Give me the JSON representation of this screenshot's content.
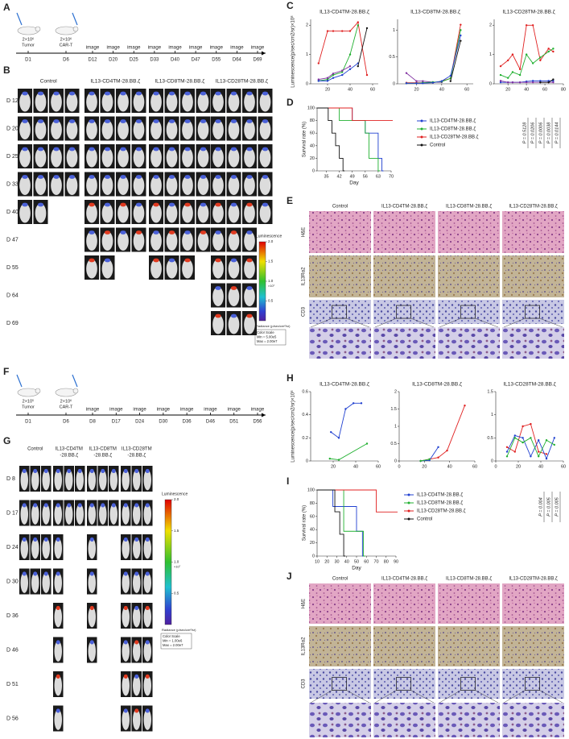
{
  "panel_labels": [
    "A",
    "B",
    "C",
    "D",
    "E",
    "F",
    "G",
    "H",
    "I",
    "J"
  ],
  "timeline_a": {
    "injections": [
      {
        "dose": "2×10⁶",
        "what": "Tumor"
      },
      {
        "dose": "2×10⁶",
        "what": "CAR-T"
      }
    ],
    "days": [
      "D1",
      "D6",
      "D12",
      "D20",
      "D25",
      "D33",
      "D40",
      "D47",
      "D55",
      "D64",
      "D69"
    ],
    "event": "image"
  },
  "panel_b": {
    "groups": [
      "Control",
      "IL13-CD4TM-28.BB.ζ",
      "IL13-CD8TM-28.BB.ζ",
      "IL13-CD28TM-28.BB.ζ"
    ],
    "days": [
      "D 12",
      "D 20",
      "D 25",
      "D 33",
      "D 40",
      "D 47",
      "D 55",
      "D 64",
      "D 69"
    ],
    "counts": [
      [
        4,
        4,
        4,
        4,
        2,
        0,
        0,
        0,
        0
      ],
      [
        4,
        4,
        4,
        4,
        4,
        4,
        2,
        0,
        0
      ],
      [
        4,
        4,
        4,
        4,
        4,
        4,
        3,
        0,
        0
      ],
      [
        4,
        4,
        4,
        4,
        4,
        3,
        3,
        3,
        3
      ]
    ],
    "colorbar": {
      "title": "Luminescence",
      "ticks": [
        {
          "value": 2,
          "label": "2.0"
        },
        {
          "value": 1.5,
          "label": "1.5"
        },
        {
          "value": 1,
          "label": "1.0"
        },
        {
          "value": 0.5,
          "label": "0.5"
        }
      ],
      "lim": [
        0,
        2
      ],
      "multiplier": "×10⁷",
      "unit": "Radiance (p/sec/cm²/sr)",
      "scale_title": "Color Scale",
      "min": "Min = 5.00e5",
      "max": "Max = 2.00e7"
    }
  },
  "panel_c": {
    "ylabel": "Luminescence(p/sec/cm2/sr)×10⁸",
    "charts": [
      {
        "type": "line",
        "title": "IL13-CD4TM-28.BB.ζ",
        "xlim": [
          5,
          65
        ],
        "xticks": [
          20,
          40,
          60
        ],
        "ylim": [
          0,
          2.2
        ],
        "yticks": [
          0,
          1,
          2
        ],
        "series": [
          {
            "color": "#e02020",
            "x": [
              12,
              20,
              25,
              33,
              40,
              47,
              55
            ],
            "values": [
              0.7,
              1.8,
              1.8,
              1.8,
              1.8,
              2.1,
              0.3
            ]
          },
          {
            "color": "#20b030",
            "x": [
              12,
              20,
              25,
              33,
              40,
              47
            ],
            "values": [
              0.1,
              0.15,
              0.3,
              0.4,
              1.0,
              2.0
            ]
          },
          {
            "color": "#2040d0",
            "x": [
              12,
              20,
              25,
              33,
              40,
              47
            ],
            "values": [
              0.1,
              0.1,
              0.2,
              0.3,
              0.5,
              0.7
            ]
          },
          {
            "color": "#8030a0",
            "x": [
              12,
              20,
              25,
              33,
              40
            ],
            "values": [
              0.15,
              0.2,
              0.35,
              0.45,
              0.6
            ]
          },
          {
            "color": "#111111",
            "x": [
              47,
              55
            ],
            "values": [
              0.6,
              1.9
            ]
          }
        ]
      },
      {
        "type": "line",
        "title": "IL13-CD8TM-28.BB.ζ",
        "xlim": [
          5,
          65
        ],
        "xticks": [
          20,
          40,
          60
        ],
        "ylim": [
          0,
          1.2
        ],
        "yticks": [
          0,
          0.5,
          1
        ],
        "series": [
          {
            "color": "#8030a0",
            "x": [
              12,
              20,
              25,
              33,
              40
            ],
            "values": [
              0.2,
              0.05,
              0.05,
              0.03,
              0.03
            ]
          },
          {
            "color": "#e02020",
            "x": [
              12,
              20,
              25,
              33,
              40,
              47,
              55
            ],
            "values": [
              0.02,
              0.02,
              0.02,
              0.02,
              0.05,
              0.1,
              1.1
            ]
          },
          {
            "color": "#20b030",
            "x": [
              12,
              20,
              25,
              33,
              40,
              47,
              55
            ],
            "values": [
              0.01,
              0.01,
              0.02,
              0.03,
              0.04,
              0.1,
              1.0
            ]
          },
          {
            "color": "#2040d0",
            "x": [
              12,
              20,
              25,
              33,
              40,
              47,
              55
            ],
            "values": [
              0.01,
              0.01,
              0.01,
              0.02,
              0.05,
              0.15,
              0.9
            ]
          },
          {
            "color": "#111111",
            "x": [
              47,
              55
            ],
            "values": [
              0.05,
              0.8
            ]
          }
        ]
      },
      {
        "type": "line",
        "title": "IL13-CD28TM-28.BB.ζ",
        "xlim": [
          5,
          80
        ],
        "xticks": [
          20,
          40,
          60,
          80
        ],
        "ylim": [
          0,
          2.2
        ],
        "yticks": [
          0,
          1,
          2
        ],
        "series": [
          {
            "color": "#e02020",
            "x": [
              12,
              20,
              25,
              33,
              40,
              47,
              55,
              64,
              69
            ],
            "values": [
              0.6,
              0.8,
              1.0,
              0.5,
              2.0,
              2.0,
              0.8,
              1.2,
              1.1
            ]
          },
          {
            "color": "#20b030",
            "x": [
              12,
              20,
              25,
              33,
              40,
              47,
              55,
              64,
              69
            ],
            "values": [
              0.3,
              0.2,
              0.4,
              0.3,
              1.0,
              0.7,
              0.9,
              1.1,
              1.2
            ]
          },
          {
            "color": "#2040d0",
            "x": [
              12,
              20,
              25,
              33,
              40,
              47,
              55,
              64,
              69
            ],
            "values": [
              0.05,
              0.05,
              0.05,
              0.05,
              0.08,
              0.1,
              0.1,
              0.1,
              0.1
            ]
          },
          {
            "color": "#8030a0",
            "x": [
              12,
              20,
              25,
              33,
              40,
              47,
              55,
              64,
              69
            ],
            "values": [
              0.1,
              0.05,
              0.05,
              0.05,
              0.05,
              0.05,
              0.05,
              0.05,
              0.05
            ]
          },
          {
            "color": "#111111",
            "x": [
              55,
              64,
              69
            ],
            "values": [
              0.05,
              0.05,
              0.15
            ]
          }
        ]
      }
    ]
  },
  "panel_d": {
    "type": "line",
    "step": true,
    "ylabel": "Survival rate (%)",
    "xlabel": "Day",
    "xlim": [
      30,
      70
    ],
    "xticks": [
      35,
      42,
      49,
      56,
      63,
      70
    ],
    "ylim": [
      0,
      100
    ],
    "yticks": [
      0,
      20,
      40,
      60,
      80,
      100
    ],
    "series": [
      {
        "name": "IL13-CD4TM-28.BB.ζ",
        "color": "#2040d0",
        "x": [
          30,
          49,
          56,
          63,
          65
        ],
        "values": [
          100,
          80,
          60,
          20,
          0
        ]
      },
      {
        "name": "IL13-CD8TM-28.BB.ζ",
        "color": "#20b030",
        "x": [
          30,
          42,
          56,
          58,
          63
        ],
        "values": [
          100,
          80,
          60,
          20,
          0
        ]
      },
      {
        "name": "IL13-CD28TM-28.BB.ζ",
        "color": "#e02020",
        "x": [
          30,
          49,
          70
        ],
        "values": [
          100,
          80,
          80
        ]
      },
      {
        "name": "Control",
        "color": "#111111",
        "x": [
          30,
          36,
          38,
          40,
          42,
          44
        ],
        "values": [
          100,
          80,
          60,
          40,
          20,
          0
        ]
      }
    ],
    "pvalues": [
      "P = 0.5128",
      "P = 0.0206",
      "P = 0.0006",
      "P = 0.0038",
      "P = 0.0144"
    ]
  },
  "panel_e": {
    "columns": [
      "Control",
      "IL13-CD4TM-28.BB.ζ",
      "IL13-CD8TM-28.BB.ζ",
      "IL13-CD28TM-28.BB.ζ"
    ],
    "rows": [
      "H&E",
      "IL13Rα2",
      "CD3"
    ]
  },
  "timeline_f": {
    "injections": [
      {
        "dose": "2×10⁵",
        "what": "Tumor"
      },
      {
        "dose": "2×10⁶",
        "what": "CAR-T"
      }
    ],
    "days": [
      "D1",
      "D6",
      "D8",
      "D17",
      "D24",
      "D30",
      "D36",
      "D46",
      "D51",
      "D56"
    ],
    "event": "image"
  },
  "panel_g": {
    "groups": [
      [
        "Control"
      ],
      [
        "IL13-CD4TM",
        "-28.BB.ζ"
      ],
      [
        "IL13-CD8TM",
        "-28.BB.ζ"
      ],
      [
        "IL13-CD28TM",
        "-28.BB.ζ"
      ]
    ],
    "days": [
      "D 8",
      "D 17",
      "D 24",
      "D 30",
      "D 36",
      "D 46",
      "D 51",
      "D 56"
    ],
    "counts": [
      [
        3,
        3,
        3,
        3,
        0,
        0,
        0,
        0
      ],
      [
        3,
        3,
        1,
        1,
        1,
        1,
        1,
        1
      ],
      [
        3,
        3,
        1,
        1,
        1,
        1,
        0,
        0
      ],
      [
        3,
        3,
        3,
        3,
        3,
        3,
        3,
        3
      ]
    ],
    "colorbar": {
      "title": "Luminescence",
      "ticks": [
        {
          "value": 2,
          "label": "2.0"
        },
        {
          "value": 1.5,
          "label": "1.5"
        },
        {
          "value": 1,
          "label": "1.0"
        },
        {
          "value": 0.5,
          "label": "0.5"
        }
      ],
      "lim": [
        0,
        2
      ],
      "multiplier": "×10⁷",
      "unit": "Radiance (p/sec/cm²/sr)",
      "scale_title": "Color Scale",
      "min": "Min = 1.00e6",
      "max": "Max = 2.00e7"
    }
  },
  "panel_h": {
    "ylabel": "Luminescence(p/sec/cm2/sr)×10⁸",
    "charts": [
      {
        "type": "line",
        "title": "IL13-CD4TM-28.BB.ζ",
        "xlim": [
          0,
          60
        ],
        "xticks": [
          20,
          40,
          60
        ],
        "ylim": [
          0,
          0.6
        ],
        "yticks": [
          0,
          0.2,
          0.4,
          0.6
        ],
        "series": [
          {
            "color": "#2040d0",
            "x": [
              18,
              25,
              31,
              38,
              45
            ],
            "values": [
              0.25,
              0.2,
              0.45,
              0.5,
              0.5
            ]
          },
          {
            "color": "#20b030",
            "x": [
              17,
              25,
              50
            ],
            "values": [
              0.02,
              0.01,
              0.15
            ]
          }
        ]
      },
      {
        "type": "line",
        "title": "IL13-CD8TM-28.BB.ζ",
        "xlim": [
          0,
          60
        ],
        "xticks": [
          0,
          20,
          40,
          60
        ],
        "ylim": [
          0,
          2
        ],
        "yticks": [
          0,
          0.5,
          1,
          1.5,
          2
        ],
        "series": [
          {
            "color": "#e02020",
            "x": [
              17,
              24,
              31,
              38,
              52
            ],
            "values": [
              0,
              0.05,
              0.1,
              0.3,
              1.6
            ]
          },
          {
            "color": "#2040d0",
            "x": [
              17,
              24,
              31
            ],
            "values": [
              0,
              0.02,
              0.4
            ]
          },
          {
            "color": "#20b030",
            "x": [
              17,
              24
            ],
            "values": [
              0,
              0.05
            ]
          }
        ]
      },
      {
        "type": "line",
        "title": "IL13-CD28TM-28.BB.ζ",
        "xlim": [
          0,
          60
        ],
        "xticks": [
          0,
          20,
          40,
          60
        ],
        "ylim": [
          0,
          1.5
        ],
        "yticks": [
          0,
          0.5,
          1,
          1.5
        ],
        "series": [
          {
            "color": "#e02020",
            "x": [
              10,
              17,
              24,
              31,
              38,
              45
            ],
            "values": [
              0.3,
              0.2,
              0.75,
              0.8,
              0.2,
              0.15
            ]
          },
          {
            "color": "#2040d0",
            "x": [
              10,
              17,
              24,
              31,
              38,
              45,
              52
            ],
            "values": [
              0.2,
              0.55,
              0.5,
              0.1,
              0.45,
              0.05,
              0.5
            ]
          },
          {
            "color": "#20b030",
            "x": [
              10,
              17,
              24,
              31,
              38,
              45,
              52
            ],
            "values": [
              0.1,
              0.5,
              0.4,
              0.5,
              0.1,
              0.45,
              0.35
            ]
          }
        ]
      }
    ]
  },
  "panel_i": {
    "type": "line",
    "step": true,
    "ylabel": "Survival rate (%)",
    "xlabel": "Day",
    "xlim": [
      10,
      90
    ],
    "xticks": [
      10,
      20,
      30,
      40,
      50,
      60,
      70,
      80,
      90
    ],
    "ylim": [
      0,
      100
    ],
    "yticks": [
      0,
      20,
      40,
      60,
      80,
      100
    ],
    "series": [
      {
        "name": "IL13-CD4TM-28.BB.ζ",
        "color": "#2040d0",
        "x": [
          10,
          26,
          50,
          56
        ],
        "values": [
          100,
          75,
          37.5,
          0
        ]
      },
      {
        "name": "IL13-CD8TM-28.BB.ζ",
        "color": "#20b030",
        "x": [
          10,
          37,
          57
        ],
        "values": [
          100,
          37.5,
          0
        ]
      },
      {
        "name": "IL13-CD28TM-28.BB.ζ",
        "color": "#e02020",
        "x": [
          10,
          70,
          90
        ],
        "values": [
          100,
          66.7,
          66.7
        ]
      },
      {
        "name": "Control",
        "color": "#111111",
        "x": [
          10,
          28,
          33,
          37
        ],
        "values": [
          100,
          67,
          33,
          0
        ]
      }
    ],
    "pvalues": [
      "P = 0.004",
      "P = 0.005",
      "P = 0.005"
    ]
  },
  "panel_j": {
    "columns": [
      "Control",
      "IL13-CD4TM-28.BB.ζ",
      "IL13-CD8TM-28.BB.ζ",
      "IL13-CD28TM-28.BB.ζ"
    ],
    "rows": [
      "H&E",
      "IL13Rα2",
      "CD3"
    ]
  }
}
